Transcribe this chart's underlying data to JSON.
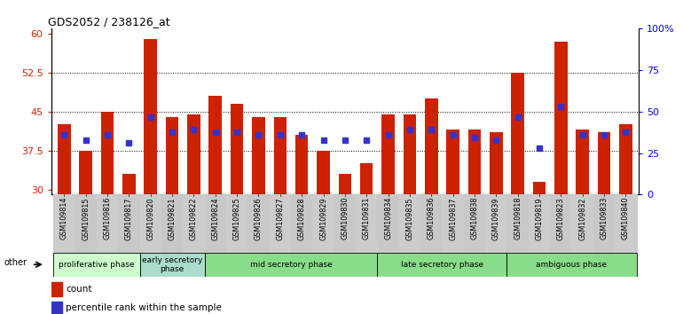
{
  "title": "GDS2052 / 238126_at",
  "samples": [
    "GSM109814",
    "GSM109815",
    "GSM109816",
    "GSM109817",
    "GSM109820",
    "GSM109821",
    "GSM109822",
    "GSM109824",
    "GSM109825",
    "GSM109826",
    "GSM109827",
    "GSM109828",
    "GSM109829",
    "GSM109830",
    "GSM109831",
    "GSM109834",
    "GSM109835",
    "GSM109836",
    "GSM109837",
    "GSM109838",
    "GSM109839",
    "GSM109818",
    "GSM109819",
    "GSM109823",
    "GSM109832",
    "GSM109833",
    "GSM109840"
  ],
  "count_values": [
    42.5,
    37.5,
    45.0,
    33.0,
    59.0,
    44.0,
    44.5,
    48.0,
    46.5,
    44.0,
    44.0,
    40.5,
    37.5,
    33.0,
    35.0,
    44.5,
    44.5,
    47.5,
    41.5,
    41.5,
    41.0,
    52.5,
    31.5,
    58.5,
    41.5,
    41.0,
    42.5
  ],
  "percentile_values": [
    40.5,
    39.5,
    40.5,
    39.0,
    44.0,
    41.0,
    41.5,
    41.0,
    41.0,
    40.5,
    40.5,
    40.5,
    39.5,
    39.5,
    39.5,
    40.5,
    41.5,
    41.5,
    40.5,
    40.0,
    39.5,
    44.0,
    38.0,
    46.0,
    40.5,
    40.5,
    41.0
  ],
  "ylim_left": [
    29,
    61
  ],
  "ylim_right": [
    0,
    100
  ],
  "yticks_left": [
    30,
    37.5,
    45,
    52.5,
    60
  ],
  "yticks_right": [
    0,
    25,
    50,
    75,
    100
  ],
  "bar_color": "#cc2200",
  "dot_color": "#3333cc",
  "phase_defs": [
    {
      "label": "proliferative phase",
      "start": 0,
      "end": 4,
      "color": "#ccffcc"
    },
    {
      "label": "early secretory\nphase",
      "start": 4,
      "end": 7,
      "color": "#aaffcc"
    },
    {
      "label": "mid secretory phase",
      "start": 7,
      "end": 15,
      "color": "#88ee88"
    },
    {
      "label": "late secretory phase",
      "start": 15,
      "end": 21,
      "color": "#88ee88"
    },
    {
      "label": "ambiguous phase",
      "start": 21,
      "end": 27,
      "color": "#88ee88"
    }
  ],
  "tick_bg_color": "#cccccc"
}
